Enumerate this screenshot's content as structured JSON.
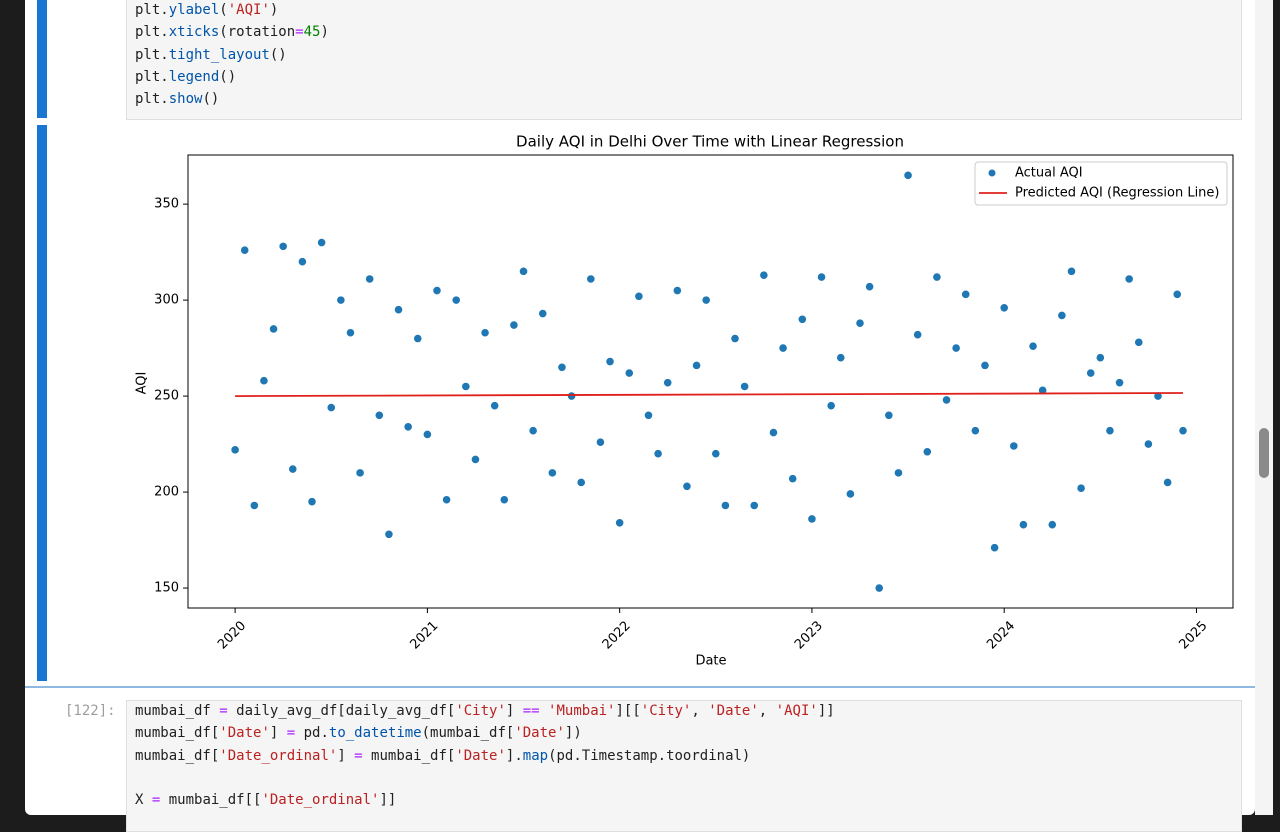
{
  "cells": [
    {
      "lines": [
        "plt.ylabel('AQI')",
        "plt.xticks(rotation=45)",
        "plt.tight_layout()",
        "plt.legend()",
        "plt.show()"
      ]
    },
    {
      "prompt": "[122]:",
      "lines": [
        "mumbai_df = daily_avg_df[daily_avg_df['City'] == 'Mumbai'][['City', 'Date', 'AQI']]",
        "mumbai_df['Date'] = pd.to_datetime(mumbai_df['Date'])",
        "mumbai_df['Date_ordinal'] = mumbai_df['Date'].map(pd.Timestamp.toordinal)",
        "X = mumbai_df[['Date_ordinal']]"
      ]
    }
  ],
  "chart_data": {
    "type": "scatter",
    "title": "Daily AQI in Delhi Over Time with Linear Regression",
    "x_label": "Date",
    "y_label": "AQI",
    "xlim": [
      2019.755,
      2025.19
    ],
    "ylim": [
      139.6,
      375.6
    ],
    "xticks": [
      2020,
      2021,
      2022,
      2023,
      2024,
      2025
    ],
    "yticks": [
      150,
      200,
      250,
      300,
      350
    ],
    "legend": "upper right",
    "grid": false,
    "series": [
      {
        "name": "Actual AQI",
        "color": "#1f77b4",
        "x": [
          2020.0,
          2020.05,
          2020.1,
          2020.15,
          2020.2,
          2020.25,
          2020.3,
          2020.35,
          2020.4,
          2020.45,
          2020.5,
          2020.55,
          2020.6,
          2020.65,
          2020.7,
          2020.75,
          2020.8,
          2020.85,
          2020.9,
          2020.95,
          2021.0,
          2021.05,
          2021.1,
          2021.15,
          2021.2,
          2021.25,
          2021.3,
          2021.35,
          2021.4,
          2021.45,
          2021.5,
          2021.55,
          2021.6,
          2021.65,
          2021.7,
          2021.75,
          2021.8,
          2021.85,
          2021.9,
          2021.95,
          2022.0,
          2022.05,
          2022.1,
          2022.15,
          2022.2,
          2022.25,
          2022.3,
          2022.35,
          2022.4,
          2022.45,
          2022.5,
          2022.55,
          2022.6,
          2022.65,
          2022.7,
          2022.75,
          2022.8,
          2022.85,
          2022.9,
          2022.95,
          2023.0,
          2023.05,
          2023.1,
          2023.15,
          2023.2,
          2023.25,
          2023.3,
          2023.35,
          2023.4,
          2023.45,
          2023.5,
          2023.55,
          2023.6,
          2023.65,
          2023.7,
          2023.75,
          2023.8,
          2023.85,
          2023.9,
          2023.95,
          2024.0,
          2024.05,
          2024.1,
          2024.15,
          2024.2,
          2024.25,
          2024.3,
          2024.35,
          2024.4,
          2024.45,
          2024.5,
          2024.55,
          2024.6,
          2024.65,
          2024.7,
          2024.75,
          2024.8,
          2024.85,
          2024.9,
          2024.93
        ],
        "values": [
          222,
          326,
          193,
          258,
          285,
          328,
          212,
          320,
          195,
          330,
          244,
          300,
          283,
          210,
          311,
          240,
          178,
          295,
          234,
          280,
          230,
          305,
          196,
          300,
          255,
          217,
          283,
          245,
          196,
          287,
          315,
          232,
          293,
          210,
          265,
          250,
          205,
          311,
          226,
          268,
          184,
          262,
          302,
          240,
          220,
          257,
          305,
          203,
          266,
          300,
          220,
          193,
          280,
          255,
          193,
          313,
          231,
          275,
          207,
          290,
          186,
          312,
          245,
          270,
          199,
          288,
          307,
          150,
          240,
          210,
          365,
          282,
          221,
          312,
          248,
          275,
          303,
          232,
          266,
          171,
          296,
          224,
          183,
          276,
          253,
          183,
          292,
          315,
          202,
          262,
          270,
          232,
          257,
          311,
          278,
          225,
          250,
          205,
          303,
          232
        ]
      },
      {
        "name": "Predicted AQI (Regression Line)",
        "color": "#e0201b",
        "type": "line",
        "x": [
          2020.0,
          2024.93
        ],
        "values": [
          250.0,
          251.6
        ]
      }
    ]
  }
}
